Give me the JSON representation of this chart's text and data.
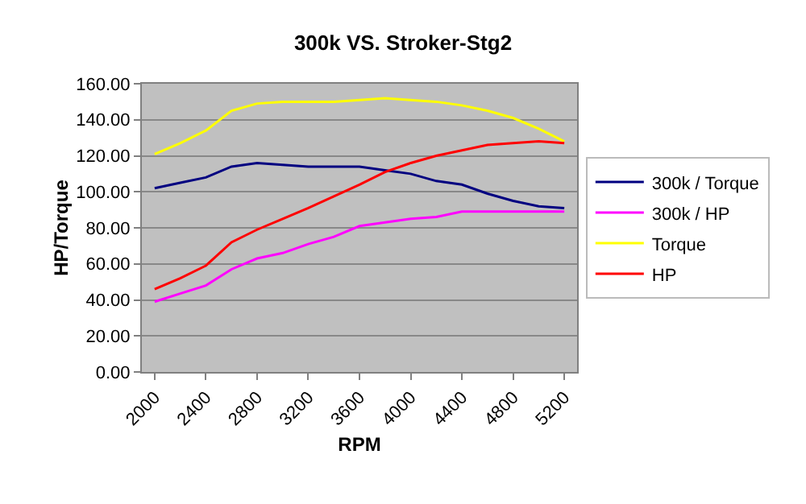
{
  "chart_data": {
    "type": "line",
    "title": "300k VS. Stroker-Stg2",
    "xlabel": "RPM",
    "ylabel": "HP/Torque",
    "x": [
      2000,
      2200,
      2400,
      2600,
      2800,
      3000,
      3200,
      3400,
      3600,
      3800,
      4000,
      4200,
      4400,
      4600,
      4800,
      5000,
      5200
    ],
    "xlim": [
      1900,
      5300
    ],
    "xticks": [
      2000,
      2400,
      2800,
      3200,
      3600,
      4000,
      4400,
      4800,
      5200
    ],
    "ylim": [
      0,
      160
    ],
    "yticks": [
      {
        "value": 0,
        "label": "0.00"
      },
      {
        "value": 20,
        "label": "20.00"
      },
      {
        "value": 40,
        "label": "40.00"
      },
      {
        "value": 60,
        "label": "60.00"
      },
      {
        "value": 80,
        "label": "80.00"
      },
      {
        "value": 100,
        "label": "100.00"
      },
      {
        "value": 120,
        "label": "120.00"
      },
      {
        "value": 140,
        "label": "140.00"
      },
      {
        "value": 160,
        "label": "160.00"
      }
    ],
    "grid": "y",
    "legend": "right",
    "marker": "none",
    "line_style": "solid",
    "series": [
      {
        "name": "300k / Torque",
        "color": "#000080",
        "values": [
          102,
          105,
          108,
          114,
          116,
          115,
          114,
          114,
          114,
          112,
          110,
          106,
          104,
          99,
          95,
          92,
          91
        ]
      },
      {
        "name": "300k / HP",
        "color": "#ff00ff",
        "values": [
          39,
          43.5,
          48,
          57,
          63,
          66,
          71,
          75,
          81,
          83,
          85,
          86,
          89,
          89,
          89,
          89,
          89
        ]
      },
      {
        "name": "Torque",
        "color": "#ffff00",
        "values": [
          121,
          127,
          134,
          145,
          149,
          150,
          150,
          150,
          151,
          152,
          151,
          150,
          148,
          145,
          141,
          135,
          128
        ]
      },
      {
        "name": "HP",
        "color": "#ff0000",
        "values": [
          46,
          52,
          59,
          72,
          79,
          85,
          91,
          97.5,
          104,
          111,
          116,
          120,
          123,
          126,
          127,
          128,
          127
        ]
      }
    ]
  }
}
